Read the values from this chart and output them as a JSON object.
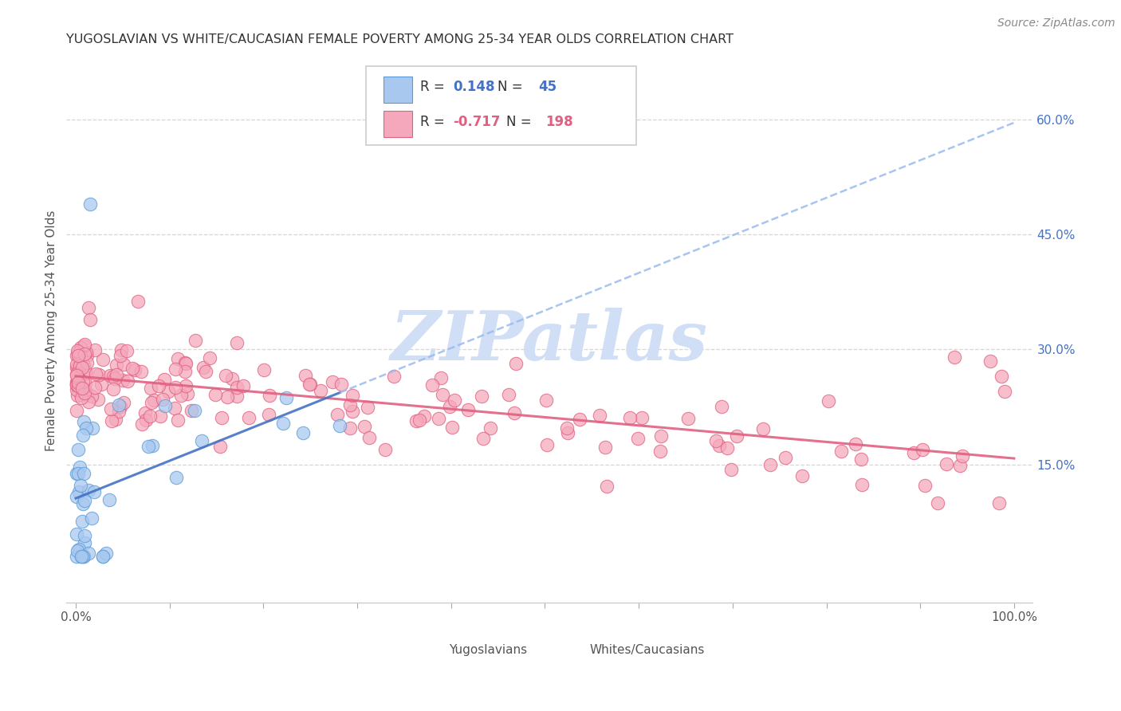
{
  "title": "YUGOSLAVIAN VS WHITE/CAUCASIAN FEMALE POVERTY AMONG 25-34 YEAR OLDS CORRELATION CHART",
  "source": "Source: ZipAtlas.com",
  "ylabel": "Female Poverty Among 25-34 Year Olds",
  "r_yug": 0.148,
  "n_yug": 45,
  "r_white": -0.717,
  "n_white": 198,
  "yug_color": "#A8C8F0",
  "white_color": "#F5A8BC",
  "yug_edge_color": "#5B9BD5",
  "white_edge_color": "#E06080",
  "yug_line_color": "#4472C4",
  "white_line_color": "#E06080",
  "watermark_color": "#D0DFF5",
  "background_color": "#FFFFFF",
  "ylim_low": -0.03,
  "ylim_high": 0.68,
  "y_ticks": [
    0.15,
    0.3,
    0.45,
    0.6
  ],
  "y_tick_labels": [
    "15.0%",
    "30.0%",
    "45.0%",
    "60.0%"
  ],
  "x_ticks": [
    0.0,
    0.1,
    0.2,
    0.3,
    0.4,
    0.5,
    0.6,
    0.7,
    0.8,
    0.9,
    1.0
  ],
  "x_tick_labels": [
    "0.0%",
    "",
    "",
    "",
    "",
    "",
    "",
    "",
    "",
    "",
    "100.0%"
  ]
}
